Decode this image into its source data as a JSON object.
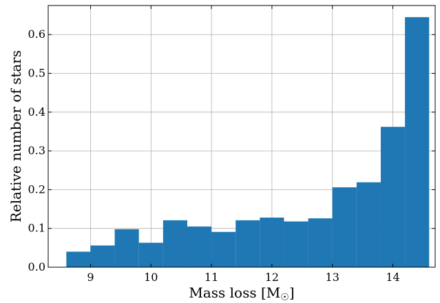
{
  "chart_data": {
    "type": "bar",
    "title": "",
    "xlabel": "Mass loss [M",
    "xlabel_sub": "☉",
    "xlabel_close": "]",
    "ylabel": "Relative number of stars",
    "xlim": [
      8.3,
      14.7
    ],
    "ylim": [
      0.0,
      0.675
    ],
    "xticks": [
      9,
      10,
      11,
      12,
      13,
      14
    ],
    "xtick_labels": [
      "9",
      "10",
      "11",
      "12",
      "13",
      "14"
    ],
    "yticks": [
      0.0,
      0.1,
      0.2,
      0.3,
      0.4,
      0.5,
      0.6
    ],
    "ytick_labels": [
      "0.0",
      "0.1",
      "0.2",
      "0.3",
      "0.4",
      "0.5",
      "0.6"
    ],
    "grid": true,
    "color": "#1f77b4",
    "bin_edges": [
      8.6,
      9.0,
      9.4,
      9.8,
      10.2,
      10.6,
      11.0,
      11.4,
      11.8,
      12.2,
      12.6,
      13.0,
      13.4,
      13.8,
      14.2,
      14.6
    ],
    "values": [
      0.04,
      0.056,
      0.098,
      0.063,
      0.121,
      0.105,
      0.091,
      0.121,
      0.128,
      0.118,
      0.126,
      0.206,
      0.219,
      0.362,
      0.645
    ]
  }
}
